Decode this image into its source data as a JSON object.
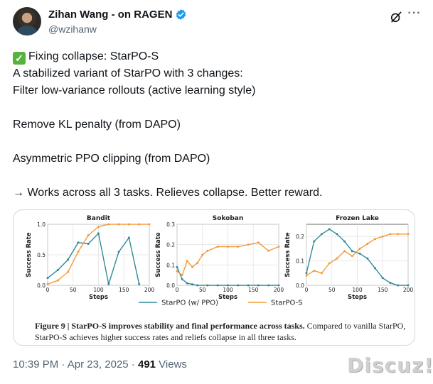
{
  "author": {
    "display_name": "Zihan Wang - on RAGEN",
    "handle": "@wzihanw",
    "verified_icon": "verified-badge-icon",
    "verified_color": "#1d9bf0"
  },
  "tweet": {
    "lines": [
      "Fixing collapse: StarPO-S",
      "A stabilized variant of StarPO with 3 changes:",
      "Filter low-variance rollouts (active learning style)",
      "",
      "Remove KL penalty (from DAPO)",
      "",
      "Asymmetric PPO clipping (from DAPO)",
      "",
      "→ Works across all 3 tasks. Relieves collapse. Better reward."
    ],
    "check_icon": "white-check-mark-icon"
  },
  "figure": {
    "caption_bold": "Figure 9 | StarPO-S improves stability and final performance across tasks.",
    "caption_rest": " Compared to vanilla StarPO, StarPO-S achieves higher success rates and reliefs collapse in all three tasks."
  },
  "chart_data": [
    {
      "type": "line",
      "title": "Bandit",
      "xlabel": "Steps",
      "ylabel": "Success Rate",
      "xlim": [
        0,
        200
      ],
      "ylim": [
        0,
        1.0
      ],
      "xticks": [
        0,
        50,
        100,
        150,
        200
      ],
      "yticks": [
        0.0,
        0.5,
        1.0
      ],
      "ytick_labels": [
        "0.0",
        "0.5",
        "1.0"
      ],
      "grid": true,
      "series": [
        {
          "name": "StarPO (w/ PPO)",
          "color": "#2e8b9a",
          "x": [
            0,
            20,
            40,
            60,
            80,
            100,
            120,
            140,
            160,
            180
          ],
          "y": [
            0.12,
            0.25,
            0.42,
            0.7,
            0.68,
            0.85,
            0.02,
            0.55,
            0.78,
            0.02
          ]
        },
        {
          "name": "StarPO-S",
          "color": "#f59a3b",
          "x": [
            0,
            20,
            40,
            60,
            80,
            100,
            120,
            140,
            160,
            180,
            200
          ],
          "y": [
            0.02,
            0.08,
            0.22,
            0.55,
            0.82,
            0.96,
            1.0,
            1.0,
            1.0,
            1.0,
            1.0
          ]
        }
      ]
    },
    {
      "type": "line",
      "title": "Sokoban",
      "xlabel": "Steps",
      "ylabel": "Success Rate",
      "xlim": [
        0,
        200
      ],
      "ylim": [
        0,
        0.3
      ],
      "xticks": [
        0,
        50,
        100,
        150,
        200
      ],
      "yticks": [
        0.0,
        0.1,
        0.2,
        0.3
      ],
      "ytick_labels": [
        "0.0",
        "0.1",
        "0.2",
        "0.3"
      ],
      "grid": true,
      "series": [
        {
          "name": "StarPO (w/ PPO)",
          "color": "#2e8b9a",
          "x": [
            0,
            10,
            20,
            30,
            40,
            60,
            80,
            100,
            120,
            140,
            160,
            180,
            200
          ],
          "y": [
            0.09,
            0.03,
            0.01,
            0.005,
            0.0,
            0.0,
            0.0,
            0.0,
            0.0,
            0.0,
            0.0,
            0.0,
            0.0
          ]
        },
        {
          "name": "StarPO-S",
          "color": "#f59a3b",
          "x": [
            0,
            10,
            20,
            30,
            40,
            50,
            60,
            80,
            100,
            120,
            140,
            160,
            180,
            200
          ],
          "y": [
            0.07,
            0.05,
            0.12,
            0.09,
            0.11,
            0.15,
            0.17,
            0.19,
            0.19,
            0.19,
            0.2,
            0.21,
            0.17,
            0.19
          ]
        }
      ]
    },
    {
      "type": "line",
      "title": "Frozen Lake",
      "xlabel": "Steps",
      "ylabel": "Success Rate",
      "xlim": [
        0,
        200
      ],
      "ylim": [
        0,
        0.25
      ],
      "xticks": [
        0,
        50,
        100,
        150,
        200
      ],
      "yticks": [
        0.0,
        0.1,
        0.2
      ],
      "ytick_labels": [
        "0.0",
        "0.1",
        "0.2"
      ],
      "grid": true,
      "series": [
        {
          "name": "StarPO (w/ PPO)",
          "color": "#2e8b9a",
          "x": [
            0,
            15,
            30,
            45,
            60,
            75,
            90,
            105,
            120,
            135,
            150,
            165,
            180,
            200
          ],
          "y": [
            0.05,
            0.18,
            0.21,
            0.23,
            0.21,
            0.18,
            0.14,
            0.13,
            0.11,
            0.07,
            0.03,
            0.01,
            0.0,
            0.0
          ]
        },
        {
          "name": "StarPO-S",
          "color": "#f59a3b",
          "x": [
            0,
            15,
            30,
            45,
            60,
            75,
            90,
            105,
            120,
            135,
            150,
            165,
            180,
            200
          ],
          "y": [
            0.04,
            0.06,
            0.05,
            0.09,
            0.11,
            0.14,
            0.12,
            0.15,
            0.17,
            0.19,
            0.2,
            0.21,
            0.21,
            0.21
          ]
        }
      ]
    }
  ],
  "legend": {
    "placement": "bottom-center",
    "items": [
      {
        "label": "StarPO (w/ PPO)",
        "color": "#2e8b9a"
      },
      {
        "label": "StarPO-S",
        "color": "#f59a3b"
      }
    ]
  },
  "meta": {
    "time": "10:39 PM",
    "separator": " · ",
    "date": "Apr 23, 2025",
    "views_count": "491",
    "views_label": " Views"
  },
  "watermark": "Discuz!"
}
